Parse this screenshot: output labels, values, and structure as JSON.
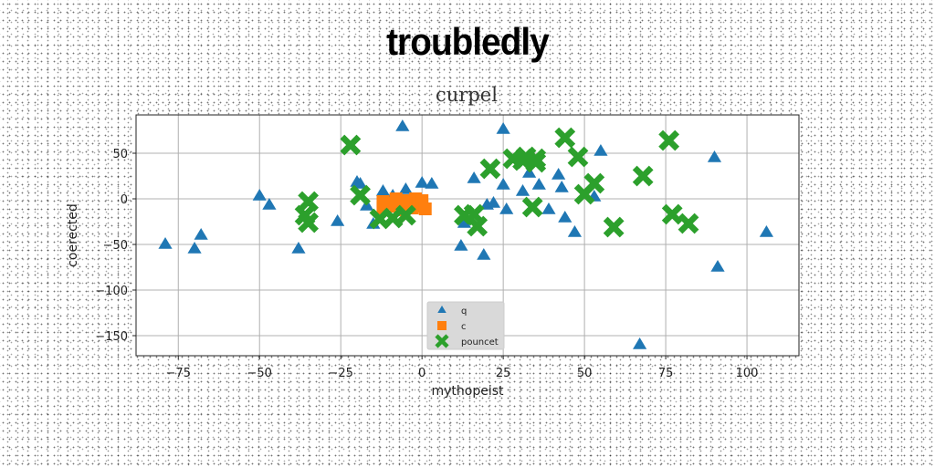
{
  "suptitle": "troubledly",
  "chart_data": {
    "type": "scatter",
    "title": "curpel",
    "xlabel": "mythopeist",
    "ylabel": "coerected",
    "xlim": [
      -88,
      116
    ],
    "ylim": [
      -172,
      92
    ],
    "xticks": [
      -75,
      -50,
      -25,
      0,
      25,
      50,
      75,
      100
    ],
    "xtick_labels": [
      "−75",
      "−50",
      "−25",
      "0",
      "25",
      "50",
      "75",
      "100"
    ],
    "yticks": [
      50,
      0,
      -50,
      -100,
      -150
    ],
    "ytick_labels": [
      "50",
      "0",
      "−50",
      "−100",
      "−150"
    ],
    "grid": true,
    "legend": "bottom-center",
    "series": [
      {
        "name": "q",
        "marker": "triangle",
        "color": "#1f77b4",
        "points": [
          [
            -79,
            -50
          ],
          [
            -70,
            -55
          ],
          [
            -68,
            -40
          ],
          [
            -50,
            3
          ],
          [
            -47,
            -7
          ],
          [
            -38,
            -55
          ],
          [
            -26,
            -25
          ],
          [
            -20,
            18
          ],
          [
            -19,
            16
          ],
          [
            -17,
            -8
          ],
          [
            -15,
            -28
          ],
          [
            -12,
            8
          ],
          [
            -9,
            3
          ],
          [
            -6,
            79
          ],
          [
            -5,
            10
          ],
          [
            0,
            17
          ],
          [
            3,
            16
          ],
          [
            12,
            -52
          ],
          [
            13,
            -27
          ],
          [
            16,
            22
          ],
          [
            19,
            -62
          ],
          [
            20,
            -7
          ],
          [
            22,
            -5
          ],
          [
            25,
            76
          ],
          [
            25,
            15
          ],
          [
            26,
            -12
          ],
          [
            30,
            44
          ],
          [
            31,
            8
          ],
          [
            33,
            28
          ],
          [
            36,
            15
          ],
          [
            39,
            -12
          ],
          [
            42,
            26
          ],
          [
            43,
            12
          ],
          [
            44,
            -21
          ],
          [
            47,
            -37
          ],
          [
            53,
            2
          ],
          [
            55,
            52
          ],
          [
            67,
            -160
          ],
          [
            90,
            45
          ],
          [
            91,
            -75
          ],
          [
            106,
            -37
          ]
        ]
      },
      {
        "name": "c",
        "marker": "square",
        "color": "#ff7f0e",
        "points": [
          [
            -12,
            -3
          ],
          [
            -12,
            -10
          ],
          [
            -10,
            -5
          ],
          [
            -8,
            0
          ],
          [
            -8,
            -8
          ],
          [
            -6,
            -12
          ],
          [
            -5,
            -2
          ],
          [
            -4,
            -6
          ],
          [
            -3,
            -10
          ],
          [
            -2,
            0
          ],
          [
            -1,
            -5
          ],
          [
            0,
            -8
          ],
          [
            0,
            -2
          ],
          [
            1,
            -11
          ]
        ]
      },
      {
        "name": "pouncet",
        "marker": "x",
        "color": "#2ca02c",
        "points": [
          [
            -35,
            -3
          ],
          [
            -36,
            -18
          ],
          [
            -35,
            -26
          ],
          [
            -22,
            59
          ],
          [
            -19,
            4
          ],
          [
            -13,
            -22
          ],
          [
            -9,
            -21
          ],
          [
            -5,
            -18
          ],
          [
            13,
            -18
          ],
          [
            16,
            -17
          ],
          [
            17,
            -30
          ],
          [
            21,
            33
          ],
          [
            28,
            44
          ],
          [
            31,
            42
          ],
          [
            32,
            46
          ],
          [
            35,
            40
          ],
          [
            35,
            44
          ],
          [
            34,
            -9
          ],
          [
            44,
            67
          ],
          [
            48,
            46
          ],
          [
            50,
            5
          ],
          [
            53,
            17
          ],
          [
            59,
            -31
          ],
          [
            68,
            25
          ],
          [
            76,
            64
          ],
          [
            77,
            -17
          ],
          [
            82,
            -27
          ]
        ]
      }
    ]
  }
}
